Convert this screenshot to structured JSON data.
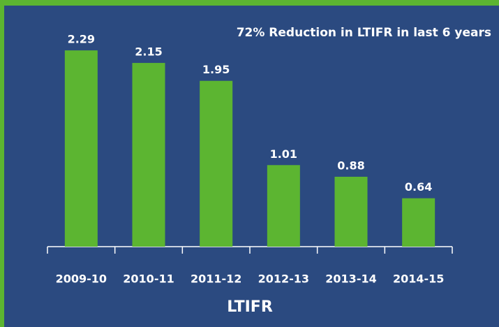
{
  "chart_data": {
    "type": "bar",
    "title": "72% Reduction in LTIFR in last 6 years",
    "x_label": "LTIFR",
    "categories": [
      "2009-10",
      "2010-11",
      "2011-12",
      "2012-13",
      "2013-14",
      "2014-15"
    ],
    "values": [
      2.29,
      2.15,
      1.95,
      1.01,
      0.88,
      0.64
    ],
    "color": "#5cb531",
    "ylim": [
      0.1,
      2.4
    ]
  }
}
